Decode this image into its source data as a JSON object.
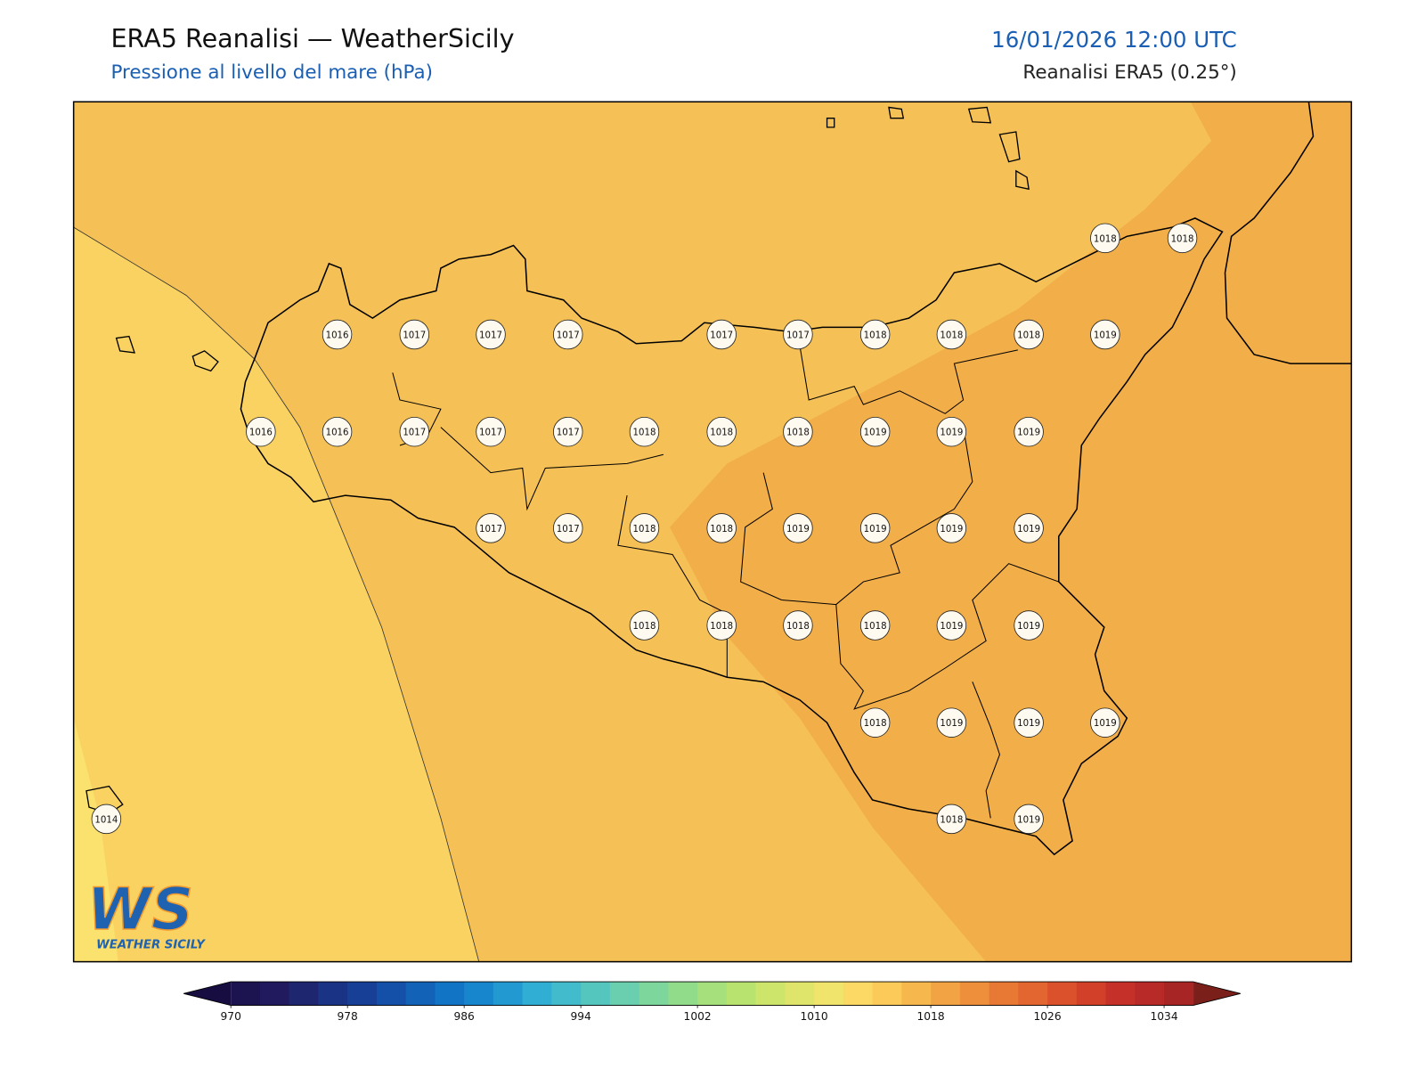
{
  "header": {
    "title": "ERA5 Reanalisi — WeatherSicily",
    "subtitle": "Pressione al livello del mare (hPa)",
    "datetime": "16/01/2026 12:00 UTC",
    "source": "Reanalisi ERA5 (0.25°)"
  },
  "map": {
    "stations": [
      1018,
      1018,
      1016,
      1017,
      1017,
      1017,
      1017,
      1017,
      1018,
      1018,
      1018,
      1019,
      1016,
      1016,
      1017,
      1017,
      1017,
      1018,
      1018,
      1018,
      1019,
      1019,
      1019,
      1017,
      1017,
      1018,
      1018,
      1019,
      1019,
      1019,
      1019,
      1018,
      1018,
      1018,
      1018,
      1019,
      1019,
      1018,
      1019,
      1019,
      1019,
      1014,
      1018,
      1019
    ]
  },
  "colorbar": {
    "lim": [
      970,
      1036
    ],
    "ticks": [
      970,
      978,
      986,
      994,
      1002,
      1010,
      1018,
      1026,
      1034
    ],
    "colors": [
      "#1c1450",
      "#221a5e",
      "#1e2670",
      "#1b3384",
      "#173f95",
      "#1450a8",
      "#1262b8",
      "#1174c4",
      "#1886cc",
      "#2399d2",
      "#31aed4",
      "#42bccc",
      "#55c6be",
      "#69cfae",
      "#7dd69c",
      "#91dc8a",
      "#a5e07c",
      "#b8e36f",
      "#cde56a",
      "#dfe56a",
      "#f0e46c",
      "#fbd964",
      "#fbca58",
      "#f6b84d",
      "#f2a444",
      "#ee8f3c",
      "#e87935",
      "#e3652f",
      "#db512b",
      "#d24029",
      "#c53128",
      "#b82a27",
      "#a82526"
    ],
    "extend_colors": [
      "#170d40",
      "#7a1f1a"
    ]
  },
  "logo": {
    "mark": "WS",
    "name": "WEATHER SICILY"
  }
}
